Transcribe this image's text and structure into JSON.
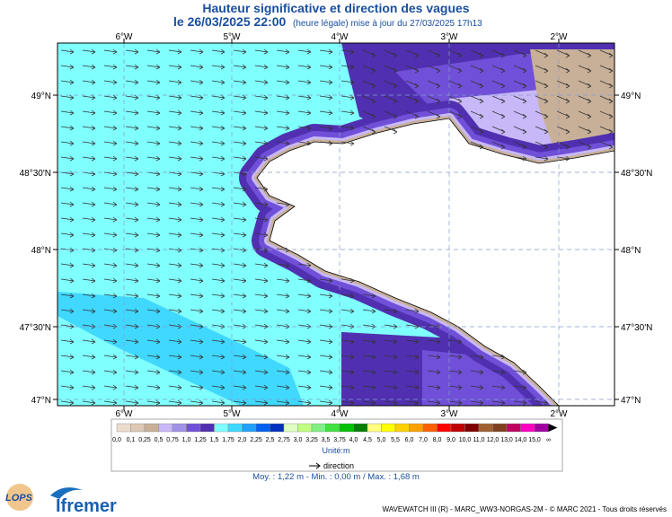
{
  "header": {
    "title": "Hauteur significative et direction des vagues",
    "date": "le 26/03/2025 22:00",
    "subtitle": "(heure légale) mise à jour du 27/03/2025 17h13"
  },
  "map": {
    "longitudes": [
      "6°W",
      "5°W",
      "4°W",
      "3°W",
      "2°W"
    ],
    "latitudes": [
      "49°N",
      "48°30'N",
      "48°N",
      "47°30'N",
      "47°N"
    ]
  },
  "legend": {
    "labels": [
      "0,0",
      "0,1",
      "0,25",
      "0,5",
      "0,75",
      "1,0",
      "1,25",
      "1,5",
      "1,75",
      "2,0",
      "2,25",
      "2,5",
      "2,75",
      "3,0",
      "3,25",
      "3,5",
      "3,75",
      "4,0",
      "4,5",
      "5,0",
      "5,5",
      "6,0",
      "7,0",
      "8,0",
      "9,0",
      "10,0",
      "11,0",
      "12,0",
      "13,0",
      "14,0",
      "15,0",
      "∞"
    ],
    "colors": [
      "#ecdccc",
      "#dcc8b4",
      "#c8b098",
      "#c8b8f8",
      "#a090e8",
      "#7050d8",
      "#5030b0",
      "#80ffff",
      "#40d8ff",
      "#20a0ff",
      "#0060f0",
      "#0030c0",
      "#e0ffc0",
      "#c0ff80",
      "#80f080",
      "#40e040",
      "#00c000",
      "#008000",
      "#ffff80",
      "#ffff00",
      "#ffd000",
      "#ffa000",
      "#ff6000",
      "#ff0000",
      "#c00000",
      "#800000",
      "#a06030",
      "#804020",
      "#c00060",
      "#ff00c0",
      "#a000a0"
    ],
    "unit": "Unité:m",
    "direction": "direction",
    "stats": "Moy. : 1,22 m   -   Min. : 0,00 m / Max. : 1,68 m"
  },
  "footer": {
    "logo_lops": "LOPS",
    "logo_ifremer": "Ifremer",
    "credits": "WAVEWATCH III (R) - MARC_WW3-NORGAS-2M - © MARC 2021 - Tous droits réservés"
  }
}
